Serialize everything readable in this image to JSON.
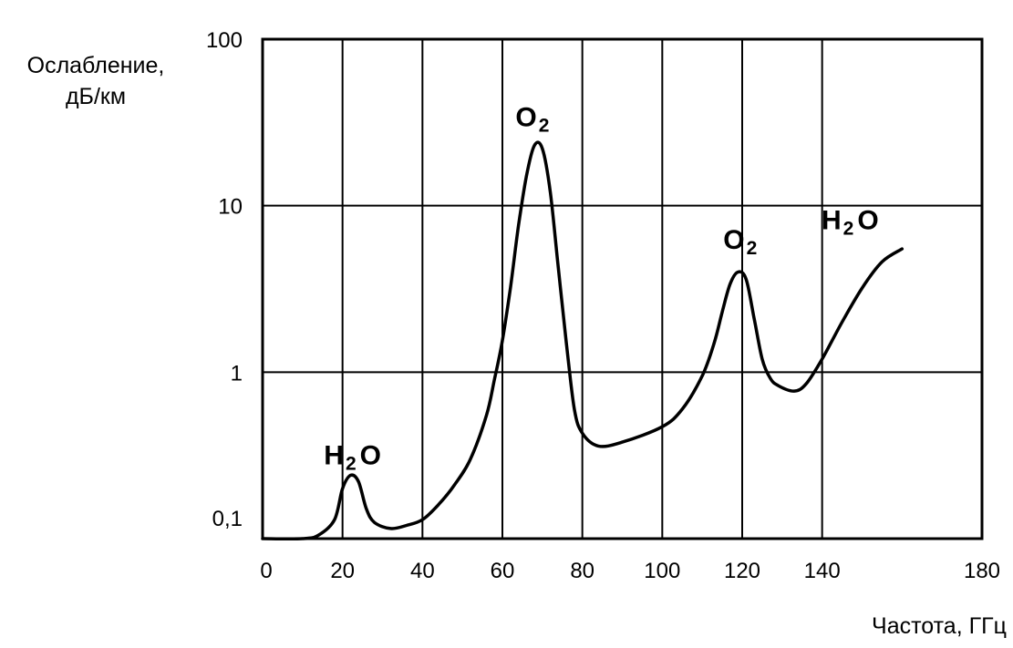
{
  "chart_data": {
    "type": "line",
    "xlabel": "Частота, ГГц",
    "ylabel_line1": "Ослабление,",
    "ylabel_line2": "дБ/км",
    "x_ticks": [
      0,
      20,
      40,
      60,
      80,
      100,
      120,
      140,
      180
    ],
    "x_tick_labels": [
      "0",
      "20",
      "40",
      "60",
      "80",
      "100",
      "120",
      "140",
      "180"
    ],
    "y_ticks": [
      0.1,
      1,
      10,
      100
    ],
    "y_tick_labels": [
      "0,1",
      "1",
      "10",
      "100"
    ],
    "xlim": [
      0,
      180
    ],
    "ylim": [
      0.1,
      100
    ],
    "y_scale": "log",
    "grid": true,
    "series": [
      {
        "x": [
          0,
          10,
          14,
          18,
          20,
          22,
          24,
          26,
          28,
          32,
          36,
          40,
          44,
          48,
          52,
          56,
          58,
          60,
          62,
          64,
          66,
          68,
          70,
          72,
          74,
          76,
          78,
          80,
          84,
          90,
          100,
          105,
          110,
          113,
          115,
          117,
          119,
          121,
          123,
          125,
          127,
          129,
          133,
          136,
          140,
          145,
          150,
          155,
          160
        ],
        "y": [
          0.1,
          0.1,
          0.105,
          0.13,
          0.2,
          0.24,
          0.22,
          0.15,
          0.125,
          0.115,
          0.12,
          0.13,
          0.16,
          0.21,
          0.3,
          0.55,
          0.9,
          1.55,
          3.2,
          7.5,
          15,
          23,
          22,
          12,
          4.2,
          1.5,
          0.6,
          0.43,
          0.36,
          0.38,
          0.47,
          0.6,
          0.95,
          1.5,
          2.3,
          3.4,
          4.0,
          3.6,
          2.1,
          1.2,
          0.92,
          0.83,
          0.77,
          0.85,
          1.2,
          2.0,
          3.2,
          4.6,
          5.5
        ]
      }
    ],
    "annotations": [
      {
        "x": 22.5,
        "y": 0.28,
        "main": "H",
        "sub": "2",
        "tail": "O"
      },
      {
        "x": 67.5,
        "y": 30,
        "main": "O",
        "sub": "2",
        "tail": ""
      },
      {
        "x": 119.5,
        "y": 5.5,
        "main": "O",
        "sub": "2",
        "tail": ""
      },
      {
        "x": 147,
        "y": 7.2,
        "main": "H",
        "sub": "2",
        "tail": "O"
      }
    ]
  }
}
